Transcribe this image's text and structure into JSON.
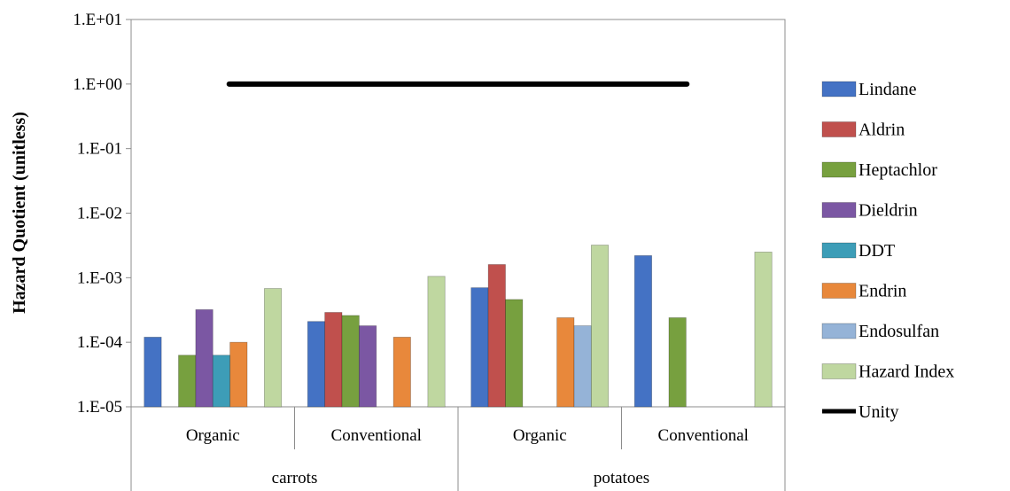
{
  "chart_data": {
    "type": "bar",
    "scale": "log",
    "ylabel": "Hazard Quotient (unitless)",
    "ylim": [
      1e-05,
      10
    ],
    "y_ticks": [
      {
        "value": 10,
        "label": "1.E+01"
      },
      {
        "value": 1,
        "label": "1.E+00"
      },
      {
        "value": 0.1,
        "label": "1.E-01"
      },
      {
        "value": 0.01,
        "label": "1.E-02"
      },
      {
        "value": 0.001,
        "label": "1.E-03"
      },
      {
        "value": 0.0001,
        "label": "1.E-04"
      },
      {
        "value": 1e-05,
        "label": "1.E-05"
      }
    ],
    "grid": false,
    "legend_position": "right",
    "groups": [
      {
        "label": "carrots",
        "categories": [
          "Organic",
          "Conventional"
        ]
      },
      {
        "label": "potatoes",
        "categories": [
          "Organic",
          "Conventional"
        ]
      }
    ],
    "series": [
      {
        "name": "Lindane",
        "color": "#4472C4",
        "values": [
          0.00012,
          0.00021,
          0.0007,
          0.0022
        ]
      },
      {
        "name": "Aldrin",
        "color": "#C0504D",
        "values": [
          null,
          0.00029,
          0.0016,
          null
        ]
      },
      {
        "name": "Heptachlor",
        "color": "#77A03F",
        "values": [
          6.3e-05,
          0.00026,
          0.00046,
          0.00024
        ]
      },
      {
        "name": "Dieldrin",
        "color": "#7B57A3",
        "values": [
          0.00032,
          0.00018,
          null,
          null
        ]
      },
      {
        "name": "DDT",
        "color": "#3D9DB7",
        "values": [
          6.3e-05,
          null,
          null,
          null
        ]
      },
      {
        "name": "Endrin",
        "color": "#E8883B",
        "values": [
          0.0001,
          0.00012,
          0.00024,
          null
        ]
      },
      {
        "name": "Endosulfan",
        "color": "#95B3D7",
        "values": [
          null,
          null,
          0.00018,
          null
        ]
      },
      {
        "name": "Hazard Index",
        "color": "#BFD7A0",
        "values": [
          0.00068,
          0.00105,
          0.0032,
          0.0025
        ]
      }
    ],
    "reference_line": {
      "name": "Unity",
      "value": 1,
      "color": "#000000"
    }
  }
}
